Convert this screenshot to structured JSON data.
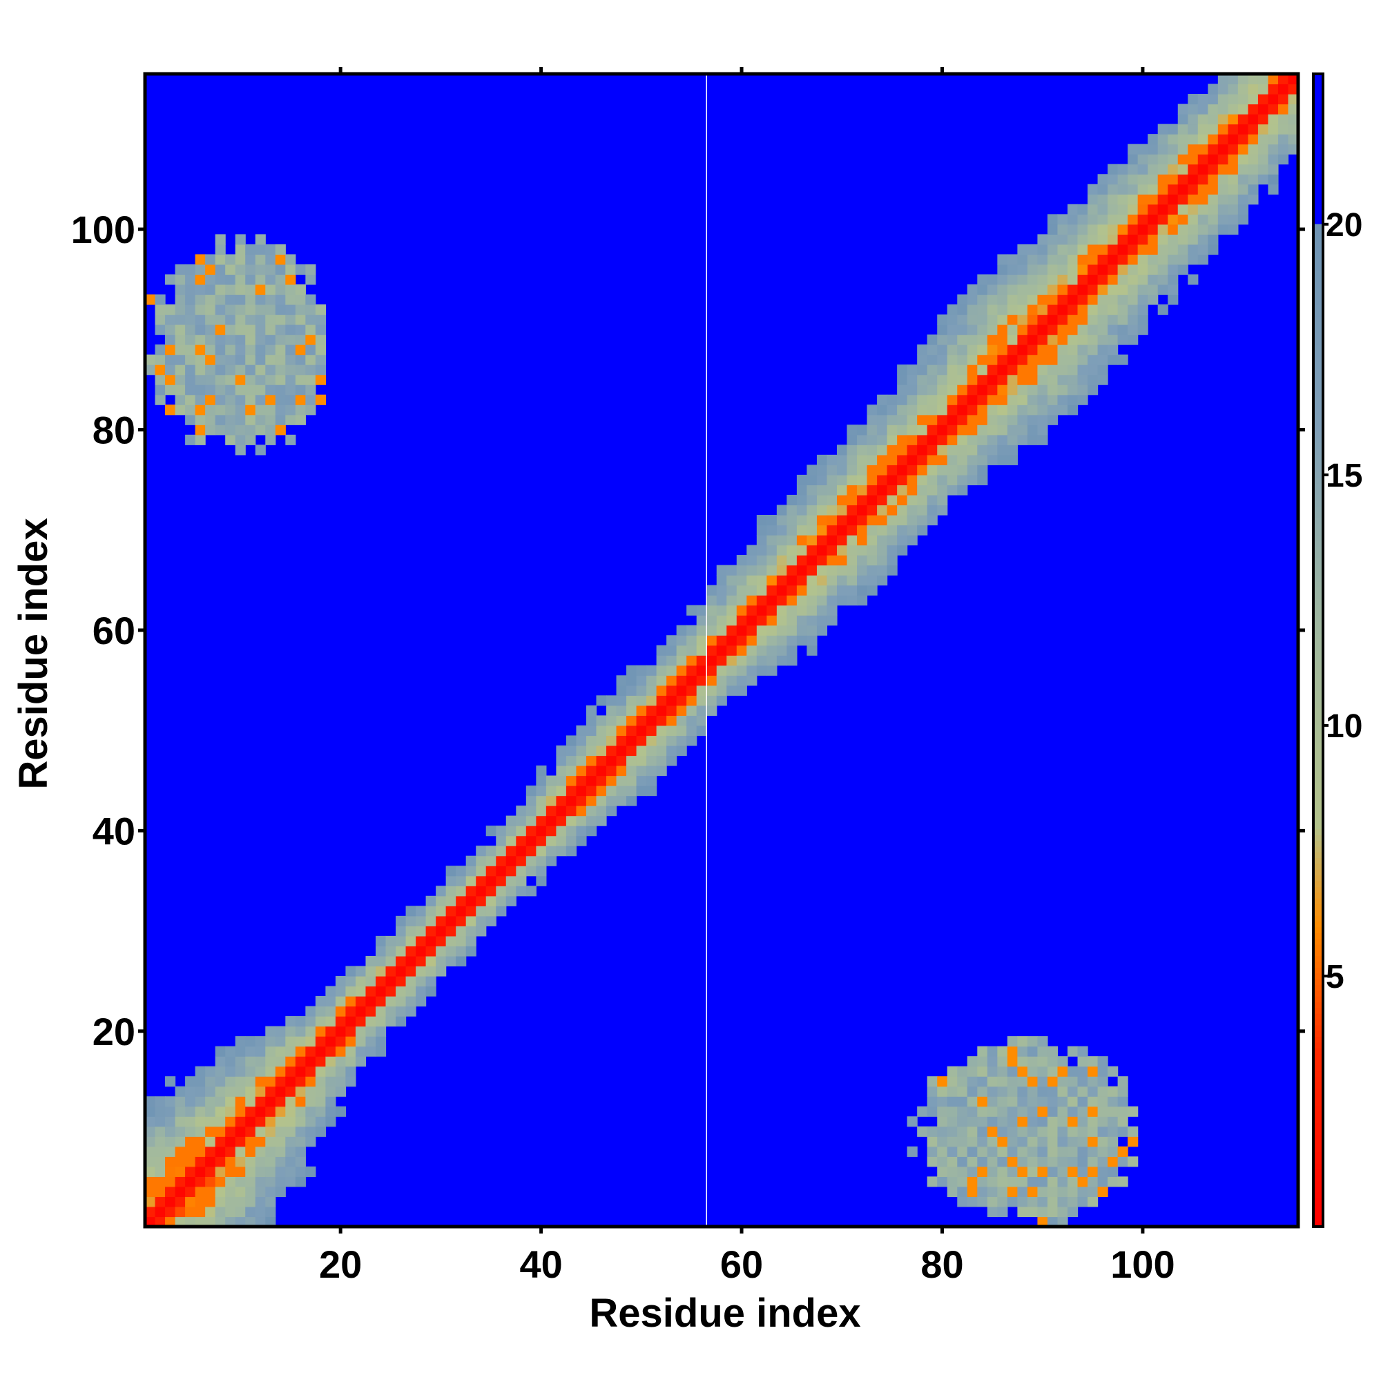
{
  "chart_data": {
    "type": "heatmap",
    "title": "",
    "xlabel": "Residue index",
    "ylabel": "Residue index",
    "n_residues": 115,
    "xlim": [
      0.5,
      115.5
    ],
    "ylim": [
      0.5,
      115.5
    ],
    "x_ticks": [
      20,
      40,
      60,
      80,
      100
    ],
    "y_ticks": [
      20,
      40,
      60,
      80,
      100
    ],
    "x_tick_labels": [
      "20",
      "40",
      "60",
      "80",
      "100"
    ],
    "y_tick_labels": [
      "20",
      "40",
      "60",
      "80",
      "100"
    ],
    "colorbar": {
      "range": [
        0,
        23
      ],
      "ticks": [
        5,
        10,
        15,
        20
      ],
      "tick_labels": [
        "5",
        "10",
        "15",
        "20"
      ],
      "cutoff": 20,
      "stops": [
        {
          "value": 0,
          "color": "#ff0000"
        },
        {
          "value": 3.5,
          "color": "#ff2a00"
        },
        {
          "value": 6,
          "color": "#ff8c00"
        },
        {
          "value": 8,
          "color": "#b4c38c"
        },
        {
          "value": 12,
          "color": "#a0b8a0"
        },
        {
          "value": 16,
          "color": "#7f9fb8"
        },
        {
          "value": 20,
          "color": "#6f94b4"
        },
        {
          "value": 20.01,
          "color": "#0000ff"
        },
        {
          "value": 23,
          "color": "#0000ff"
        }
      ]
    },
    "background_color": "#0000ff",
    "gap_line_at_x": 56.5,
    "description_of_values": "Pairwise residue distance map: values near 0 on the diagonal (red), increasing with |i-j|; band widens between residues 60-95; off-diagonal contact clusters between residues 1-18 and 78-99",
    "diagonal_band": [
      {
        "residue": 1,
        "halfwidth": 14
      },
      {
        "residue": 10,
        "halfwidth": 11
      },
      {
        "residue": 20,
        "halfwidth": 6
      },
      {
        "residue": 30,
        "halfwidth": 5
      },
      {
        "residue": 40,
        "halfwidth": 5
      },
      {
        "residue": 48,
        "halfwidth": 7
      },
      {
        "residue": 55,
        "halfwidth": 6
      },
      {
        "residue": 62,
        "halfwidth": 8
      },
      {
        "residue": 70,
        "halfwidth": 9
      },
      {
        "residue": 80,
        "halfwidth": 9
      },
      {
        "residue": 88,
        "halfwidth": 12
      },
      {
        "residue": 95,
        "halfwidth": 10
      },
      {
        "residue": 105,
        "halfwidth": 9
      },
      {
        "residue": 115,
        "halfwidth": 8
      }
    ],
    "contact_clusters": [
      {
        "x_range": [
          1,
          19
        ],
        "y_range": [
          78,
          99
        ],
        "min_value": 5,
        "typical_value": 14
      },
      {
        "x_range": [
          78,
          99
        ],
        "y_range": [
          1,
          19
        ],
        "min_value": 5,
        "typical_value": 14
      }
    ]
  }
}
